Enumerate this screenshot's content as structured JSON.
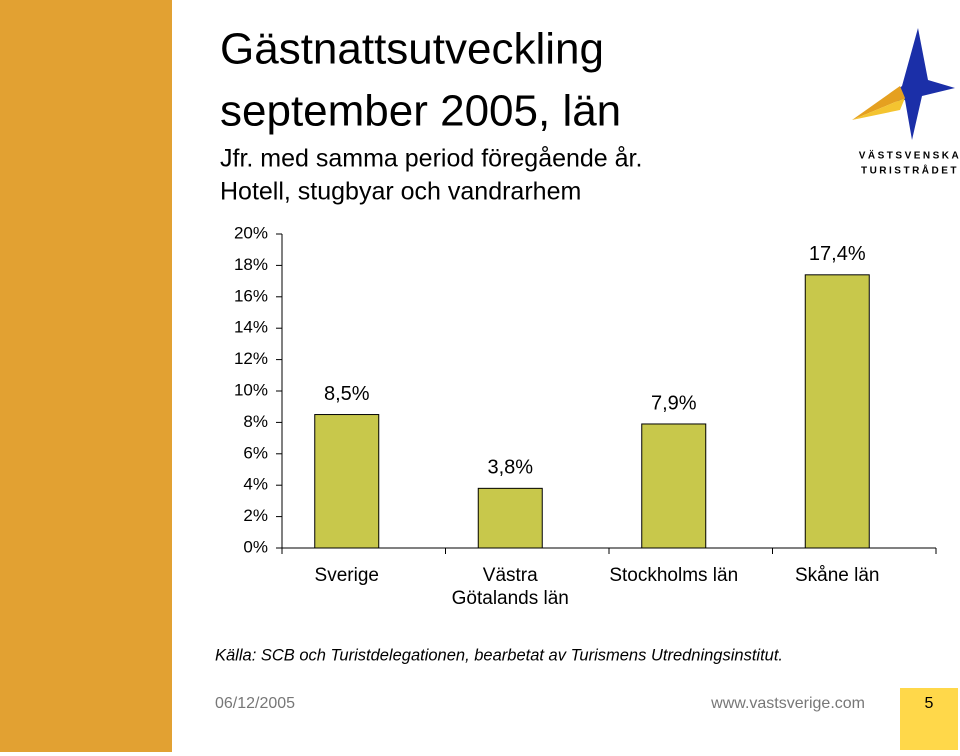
{
  "slide": {
    "title_lines": [
      "Gästnattsutveckling",
      "september 2005, län"
    ],
    "subtitle_lines": [
      "Jfr. med samma period föregående år.",
      "Hotell, stugbyar och vandrarhem"
    ],
    "logo": {
      "line1": "VÄSTSVENSKA",
      "line2": "TURISTRÅDET"
    },
    "source": "Källa: SCB och Turistdelegationen, bearbetat av Turismens Utredningsinstitut.",
    "date": "06/12/2005",
    "url": "www.vastsverige.com",
    "page_number": "5"
  },
  "chart_data": {
    "type": "bar",
    "categories": [
      "Sverige",
      "Västra\nGötalands län",
      "Stockholms län",
      "Skåne län"
    ],
    "values": [
      8.5,
      3.8,
      7.9,
      17.4
    ],
    "value_labels": [
      "8,5%",
      "3,8%",
      "7,9%",
      "17,4%"
    ],
    "color": "#c8c84b",
    "ylim": [
      0,
      20
    ],
    "yticks": [
      {
        "value": 0,
        "label": "0%"
      },
      {
        "value": 2,
        "label": "2%"
      },
      {
        "value": 4,
        "label": "4%"
      },
      {
        "value": 6,
        "label": "6%"
      },
      {
        "value": 8,
        "label": "8%"
      },
      {
        "value": 10,
        "label": "10%"
      },
      {
        "value": 12,
        "label": "12%"
      },
      {
        "value": 14,
        "label": "14%"
      },
      {
        "value": 16,
        "label": "16%"
      },
      {
        "value": 18,
        "label": "18%"
      },
      {
        "value": 20,
        "label": "20%"
      }
    ],
    "grid": false
  }
}
